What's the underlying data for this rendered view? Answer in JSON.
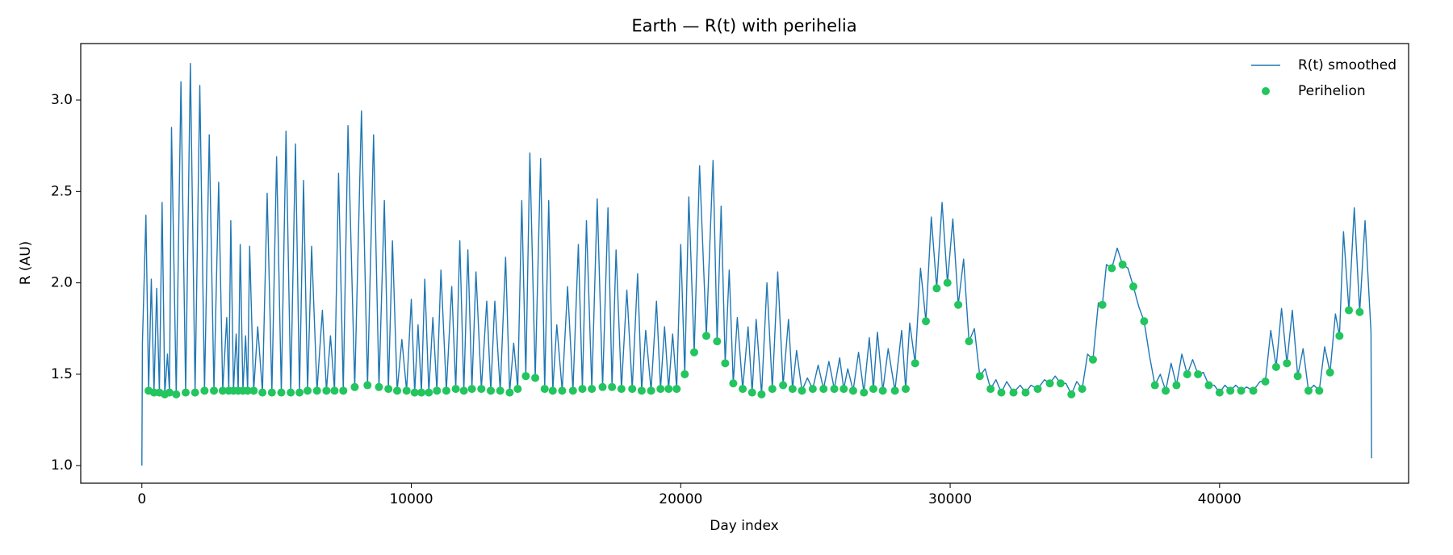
{
  "chart_data": {
    "type": "line",
    "title": "Earth — R(t) with perihelia",
    "xlabel": "Day index",
    "ylabel": "R (AU)",
    "xlim": [
      -2270,
      47016
    ],
    "ylim": [
      0.904,
      3.309
    ],
    "xticks": [
      0,
      10000,
      20000,
      30000,
      40000
    ],
    "yticks": [
      {
        "value": 1,
        "label": "1.0"
      },
      1.5,
      {
        "value": 2,
        "label": "2.0"
      },
      2.5,
      {
        "value": 3,
        "label": "3.0"
      }
    ],
    "legend": "upper right",
    "series": [
      {
        "name": "R(t) smoothed",
        "type": "line",
        "color": "#1f77b4",
        "x": [
          0,
          20,
          150,
          250,
          350,
          450,
          550,
          650,
          750,
          850,
          950,
          1025,
          1100,
          1275,
          1450,
          1625,
          1800,
          1975,
          2150,
          2325,
          2500,
          2675,
          2850,
          3000,
          3150,
          3225,
          3300,
          3400,
          3500,
          3575,
          3650,
          3750,
          3850,
          3925,
          4000,
          4150,
          4300,
          4475,
          4650,
          4825,
          5000,
          5175,
          5350,
          5525,
          5700,
          5850,
          6000,
          6150,
          6300,
          6500,
          6700,
          6850,
          7000,
          7150,
          7300,
          7475,
          7650,
          7900,
          8150,
          8375,
          8600,
          8800,
          9000,
          9150,
          9300,
          9475,
          9650,
          9825,
          10000,
          10125,
          10250,
          10375,
          10500,
          10650,
          10800,
          10950,
          11100,
          11300,
          11500,
          11650,
          11800,
          11950,
          12100,
          12250,
          12400,
          12600,
          12800,
          12950,
          13100,
          13300,
          13500,
          13650,
          13800,
          13950,
          14100,
          14250,
          14400,
          14600,
          14800,
          14950,
          15100,
          15250,
          15400,
          15600,
          15800,
          16000,
          16200,
          16350,
          16500,
          16700,
          16900,
          17100,
          17300,
          17450,
          17600,
          17800,
          18000,
          18200,
          18400,
          18550,
          18700,
          18900,
          19100,
          19250,
          19400,
          19550,
          19700,
          19850,
          20000,
          20150,
          20300,
          20500,
          20700,
          20950,
          21200,
          21350,
          21500,
          21650,
          21800,
          21950,
          22100,
          22300,
          22500,
          22650,
          22800,
          23000,
          23200,
          23400,
          23600,
          23800,
          24000,
          24150,
          24300,
          24500,
          24700,
          24900,
          25100,
          25300,
          25500,
          25700,
          25900,
          26050,
          26200,
          26400,
          26600,
          26800,
          27000,
          27150,
          27300,
          27500,
          27700,
          27950,
          28200,
          28350,
          28500,
          28700,
          28900,
          29100,
          29300,
          29500,
          29700,
          29900,
          30100,
          30300,
          30500,
          30700,
          30900,
          31100,
          31300,
          31500,
          31700,
          31900,
          32100,
          32350,
          32600,
          32800,
          33000,
          33250,
          33500,
          33700,
          33900,
          34100,
          34300,
          34500,
          34700,
          34900,
          35100,
          35300,
          35500,
          35650,
          35800,
          36000,
          36200,
          36400,
          36600,
          36800,
          37000,
          37200,
          37400,
          37600,
          37800,
          38000,
          38200,
          38400,
          38600,
          38800,
          39000,
          39200,
          39400,
          39600,
          39800,
          40000,
          40200,
          40400,
          40600,
          40800,
          41000,
          41250,
          41500,
          41700,
          41900,
          42100,
          42300,
          42500,
          42700,
          42900,
          43100,
          43300,
          43500,
          43700,
          43900,
          44100,
          44300,
          44450,
          44600,
          44800,
          45000,
          45200,
          45400,
          45620,
          45640
        ],
        "values": [
          1.0,
          1.67,
          2.37,
          1.41,
          2.02,
          1.4,
          1.97,
          1.4,
          2.44,
          1.39,
          1.61,
          1.4,
          2.85,
          1.39,
          3.1,
          1.4,
          3.2,
          1.4,
          3.08,
          1.41,
          2.81,
          1.41,
          2.55,
          1.41,
          1.81,
          1.41,
          2.34,
          1.41,
          1.72,
          1.41,
          2.21,
          1.41,
          1.71,
          1.41,
          2.2,
          1.41,
          1.76,
          1.4,
          2.49,
          1.4,
          2.69,
          1.4,
          2.83,
          1.4,
          2.76,
          1.4,
          2.56,
          1.41,
          2.2,
          1.41,
          1.85,
          1.41,
          1.71,
          1.41,
          2.6,
          1.41,
          2.86,
          1.43,
          2.94,
          1.44,
          2.81,
          1.43,
          2.45,
          1.42,
          2.23,
          1.41,
          1.69,
          1.41,
          1.91,
          1.4,
          1.77,
          1.4,
          2.02,
          1.4,
          1.81,
          1.41,
          2.07,
          1.41,
          1.98,
          1.42,
          2.23,
          1.41,
          2.18,
          1.42,
          2.06,
          1.42,
          1.9,
          1.41,
          1.9,
          1.41,
          2.14,
          1.4,
          1.67,
          1.42,
          2.45,
          1.49,
          2.71,
          1.48,
          2.68,
          1.42,
          2.45,
          1.41,
          1.77,
          1.41,
          1.98,
          1.41,
          2.21,
          1.42,
          2.34,
          1.42,
          2.46,
          1.43,
          2.41,
          1.43,
          2.18,
          1.42,
          1.96,
          1.42,
          2.05,
          1.41,
          1.74,
          1.41,
          1.9,
          1.42,
          1.76,
          1.42,
          1.72,
          1.42,
          2.21,
          1.5,
          2.47,
          1.62,
          2.64,
          1.71,
          2.67,
          1.68,
          2.42,
          1.56,
          2.07,
          1.45,
          1.81,
          1.42,
          1.76,
          1.4,
          1.8,
          1.39,
          2.0,
          1.42,
          2.06,
          1.44,
          1.8,
          1.42,
          1.63,
          1.41,
          1.48,
          1.42,
          1.55,
          1.42,
          1.57,
          1.42,
          1.59,
          1.42,
          1.53,
          1.41,
          1.62,
          1.4,
          1.7,
          1.42,
          1.73,
          1.41,
          1.64,
          1.41,
          1.74,
          1.42,
          1.78,
          1.56,
          2.08,
          1.79,
          2.36,
          1.97,
          2.44,
          2.0,
          2.35,
          1.88,
          2.13,
          1.68,
          1.75,
          1.49,
          1.53,
          1.42,
          1.47,
          1.4,
          1.46,
          1.4,
          1.44,
          1.4,
          1.44,
          1.42,
          1.47,
          1.45,
          1.49,
          1.45,
          1.45,
          1.39,
          1.46,
          1.42,
          1.61,
          1.58,
          1.89,
          1.88,
          2.1,
          2.08,
          2.19,
          2.1,
          2.08,
          1.98,
          1.87,
          1.79,
          1.6,
          1.44,
          1.5,
          1.41,
          1.56,
          1.44,
          1.61,
          1.5,
          1.58,
          1.5,
          1.51,
          1.44,
          1.44,
          1.4,
          1.44,
          1.41,
          1.44,
          1.41,
          1.43,
          1.41,
          1.46,
          1.46,
          1.74,
          1.54,
          1.86,
          1.56,
          1.85,
          1.49,
          1.64,
          1.41,
          1.44,
          1.41,
          1.65,
          1.51,
          1.83,
          1.71,
          2.28,
          1.85,
          2.41,
          1.84,
          2.34,
          1.73,
          1.04
        ]
      },
      {
        "name": "Perihelion",
        "type": "scatter",
        "color": "#22c55e",
        "x": [
          250,
          450,
          650,
          850,
          1025,
          1275,
          1625,
          1975,
          2325,
          2675,
          3000,
          3225,
          3400,
          3575,
          3750,
          3925,
          4150,
          4475,
          4825,
          5175,
          5525,
          5850,
          6150,
          6500,
          6850,
          7150,
          7475,
          7900,
          8375,
          8800,
          9150,
          9475,
          9825,
          10125,
          10375,
          10650,
          10950,
          11300,
          11650,
          11950,
          12250,
          12600,
          12950,
          13300,
          13650,
          13950,
          14250,
          14600,
          14950,
          15250,
          15600,
          16000,
          16350,
          16700,
          17100,
          17450,
          17800,
          18200,
          18550,
          18900,
          19250,
          19550,
          19850,
          20150,
          20500,
          20950,
          21350,
          21650,
          21950,
          22300,
          22650,
          23000,
          23400,
          23800,
          24150,
          24500,
          24900,
          25300,
          25700,
          26050,
          26400,
          26800,
          27150,
          27500,
          27950,
          28350,
          28700,
          29100,
          29500,
          29900,
          30300,
          30700,
          31100,
          31500,
          31900,
          32350,
          32800,
          33250,
          33700,
          34100,
          34500,
          34900,
          35300,
          35650,
          36000,
          36400,
          36800,
          37200,
          37600,
          38000,
          38400,
          38800,
          39200,
          39600,
          40000,
          40400,
          40800,
          41250,
          41700,
          42100,
          42500,
          42900,
          43300,
          43700,
          44100,
          44450,
          44800,
          45200
        ],
        "values": [
          1.41,
          1.4,
          1.4,
          1.39,
          1.4,
          1.39,
          1.4,
          1.4,
          1.41,
          1.41,
          1.41,
          1.41,
          1.41,
          1.41,
          1.41,
          1.41,
          1.41,
          1.4,
          1.4,
          1.4,
          1.4,
          1.4,
          1.41,
          1.41,
          1.41,
          1.41,
          1.41,
          1.43,
          1.44,
          1.43,
          1.42,
          1.41,
          1.41,
          1.4,
          1.4,
          1.4,
          1.41,
          1.41,
          1.42,
          1.41,
          1.42,
          1.42,
          1.41,
          1.41,
          1.4,
          1.42,
          1.49,
          1.48,
          1.42,
          1.41,
          1.41,
          1.41,
          1.42,
          1.42,
          1.43,
          1.43,
          1.42,
          1.42,
          1.41,
          1.41,
          1.42,
          1.42,
          1.42,
          1.5,
          1.62,
          1.71,
          1.68,
          1.56,
          1.45,
          1.42,
          1.4,
          1.39,
          1.42,
          1.44,
          1.42,
          1.41,
          1.42,
          1.42,
          1.42,
          1.42,
          1.41,
          1.4,
          1.42,
          1.41,
          1.41,
          1.42,
          1.56,
          1.79,
          1.97,
          2.0,
          1.88,
          1.68,
          1.49,
          1.42,
          1.4,
          1.4,
          1.4,
          1.42,
          1.45,
          1.45,
          1.39,
          1.42,
          1.58,
          1.88,
          2.08,
          2.1,
          1.98,
          1.79,
          1.44,
          1.41,
          1.44,
          1.5,
          1.5,
          1.44,
          1.4,
          1.41,
          1.41,
          1.41,
          1.46,
          1.54,
          1.56,
          1.49,
          1.41,
          1.41,
          1.51,
          1.71,
          1.85,
          1.84
        ]
      }
    ]
  }
}
